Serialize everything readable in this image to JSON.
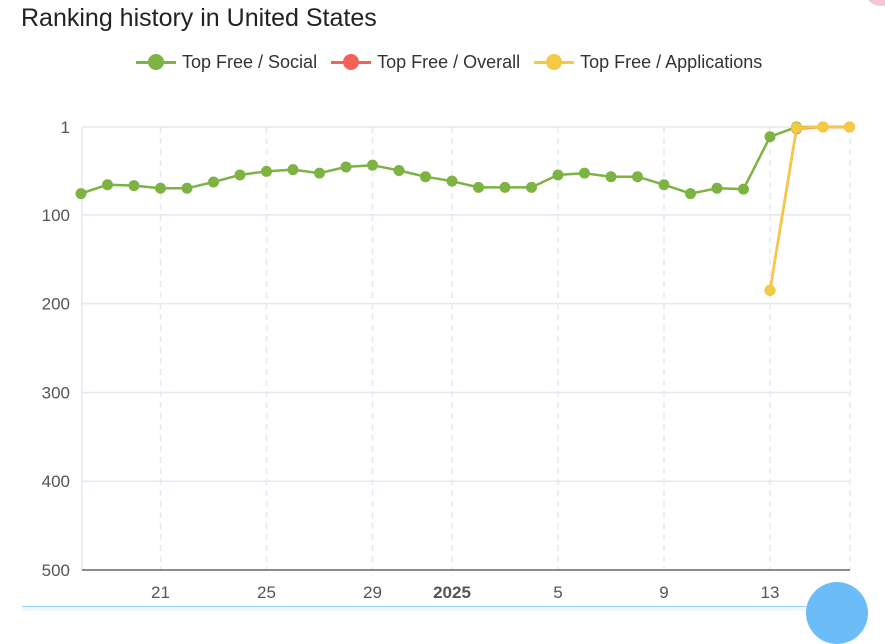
{
  "title": "Ranking history in United States",
  "colors": {
    "social": "#7cb342",
    "overall": "#f4605a",
    "applications": "#f6c945",
    "grid": "#e4e8f3",
    "axis": "#666666"
  },
  "chart_data": {
    "type": "line",
    "title": "Ranking history in United States",
    "y_inverted": true,
    "ylim": [
      1,
      500
    ],
    "y_ticks": [
      "1",
      "100",
      "200",
      "300",
      "400",
      "500"
    ],
    "x_ticks": [
      {
        "day": 4,
        "label": "21",
        "bold": false
      },
      {
        "day": 8,
        "label": "25",
        "bold": false
      },
      {
        "day": 12,
        "label": "29",
        "bold": false
      },
      {
        "day": 15,
        "label": "2025",
        "bold": true
      },
      {
        "day": 19,
        "label": "5",
        "bold": false
      },
      {
        "day": 23,
        "label": "9",
        "bold": false
      },
      {
        "day": 27,
        "label": "13",
        "bold": false
      }
    ],
    "grid": true,
    "legend_position": "top",
    "series": [
      {
        "name": "Top Free / Social",
        "color_key": "social",
        "points": [
          {
            "day": 1,
            "rank": 76
          },
          {
            "day": 2,
            "rank": 66
          },
          {
            "day": 3,
            "rank": 67
          },
          {
            "day": 4,
            "rank": 70
          },
          {
            "day": 5,
            "rank": 70
          },
          {
            "day": 6,
            "rank": 63
          },
          {
            "day": 7,
            "rank": 55
          },
          {
            "day": 8,
            "rank": 51
          },
          {
            "day": 9,
            "rank": 49
          },
          {
            "day": 10,
            "rank": 53
          },
          {
            "day": 11,
            "rank": 46
          },
          {
            "day": 12,
            "rank": 44
          },
          {
            "day": 13,
            "rank": 50
          },
          {
            "day": 14,
            "rank": 57
          },
          {
            "day": 15,
            "rank": 62
          },
          {
            "day": 16,
            "rank": 69
          },
          {
            "day": 17,
            "rank": 69
          },
          {
            "day": 18,
            "rank": 69
          },
          {
            "day": 19,
            "rank": 55
          },
          {
            "day": 20,
            "rank": 53
          },
          {
            "day": 21,
            "rank": 57
          },
          {
            "day": 22,
            "rank": 57
          },
          {
            "day": 23,
            "rank": 66
          },
          {
            "day": 24,
            "rank": 76
          },
          {
            "day": 25,
            "rank": 70
          },
          {
            "day": 26,
            "rank": 71
          },
          {
            "day": 27,
            "rank": 12
          },
          {
            "day": 28,
            "rank": 1
          },
          {
            "day": 29,
            "rank": 1
          },
          {
            "day": 30,
            "rank": 1
          }
        ]
      },
      {
        "name": "Top Free / Overall",
        "color_key": "overall",
        "points": [
          {
            "day": 27,
            "rank": 185
          },
          {
            "day": 28,
            "rank": 3
          },
          {
            "day": 29,
            "rank": 1
          },
          {
            "day": 30,
            "rank": 1
          }
        ]
      },
      {
        "name": "Top Free / Applications",
        "color_key": "applications",
        "points": [
          {
            "day": 27,
            "rank": 185
          },
          {
            "day": 28,
            "rank": 2
          },
          {
            "day": 29,
            "rank": 1
          },
          {
            "day": 30,
            "rank": 1
          }
        ]
      }
    ]
  }
}
